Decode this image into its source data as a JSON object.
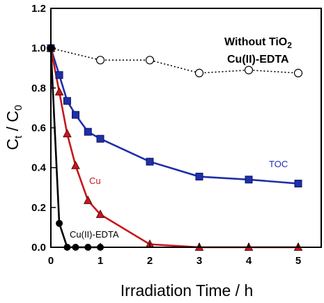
{
  "chart_data": {
    "type": "line",
    "xlabel": "Irradiation Time  /  h",
    "ylabel_main": "C",
    "ylabel_sub1": "t",
    "ylabel_mid": " / C",
    "ylabel_sub2": "0",
    "xlim": [
      0,
      5
    ],
    "ylim": [
      0,
      1.2
    ],
    "x_ticks": [
      "0",
      "1",
      "2",
      "3",
      "4",
      "5"
    ],
    "y_ticks": [
      "0.0",
      "0.2",
      "0.4",
      "0.6",
      "0.8",
      "1.0",
      "1.2"
    ],
    "grid": false,
    "series": [
      {
        "name": "Without TiO2 Cu(II)-EDTA",
        "color": "#000000",
        "marker": "open-circle",
        "line": "dotted",
        "points": [
          [
            0,
            1.0
          ],
          [
            1,
            0.94
          ],
          [
            2,
            0.94
          ],
          [
            3,
            0.875
          ],
          [
            4,
            0.89
          ],
          [
            5,
            0.875
          ]
        ]
      },
      {
        "name": "TOC",
        "color": "#1f2fa8",
        "marker": "square",
        "line": "solid",
        "points": [
          [
            0,
            1.0
          ],
          [
            0.17,
            0.865
          ],
          [
            0.33,
            0.735
          ],
          [
            0.5,
            0.665
          ],
          [
            0.75,
            0.58
          ],
          [
            1,
            0.545
          ],
          [
            2,
            0.43
          ],
          [
            3,
            0.355
          ],
          [
            4,
            0.34
          ],
          [
            5,
            0.32
          ]
        ]
      },
      {
        "name": "Cu",
        "color": "#c8161d",
        "marker": "triangle",
        "line": "solid",
        "points": [
          [
            0,
            1.0
          ],
          [
            0.17,
            0.78
          ],
          [
            0.33,
            0.57
          ],
          [
            0.5,
            0.41
          ],
          [
            0.75,
            0.235
          ],
          [
            1,
            0.165
          ],
          [
            2,
            0.015
          ],
          [
            3,
            0.0
          ],
          [
            4,
            0.0
          ],
          [
            5,
            0.0
          ]
        ]
      },
      {
        "name": "Cu(II)-EDTA",
        "color": "#000000",
        "marker": "circle",
        "line": "solid",
        "points": [
          [
            0,
            1.0
          ],
          [
            0.17,
            0.12
          ],
          [
            0.33,
            0.0
          ],
          [
            0.5,
            0.0
          ],
          [
            0.75,
            0.0
          ],
          [
            1,
            0.0
          ]
        ]
      }
    ],
    "annotations": {
      "without_line1": "Without TiO",
      "without_sub": "2",
      "without_line2": "Cu(II)-EDTA",
      "toc": "TOC",
      "cu": "Cu",
      "cuedta": "Cu(II)-EDTA"
    }
  }
}
